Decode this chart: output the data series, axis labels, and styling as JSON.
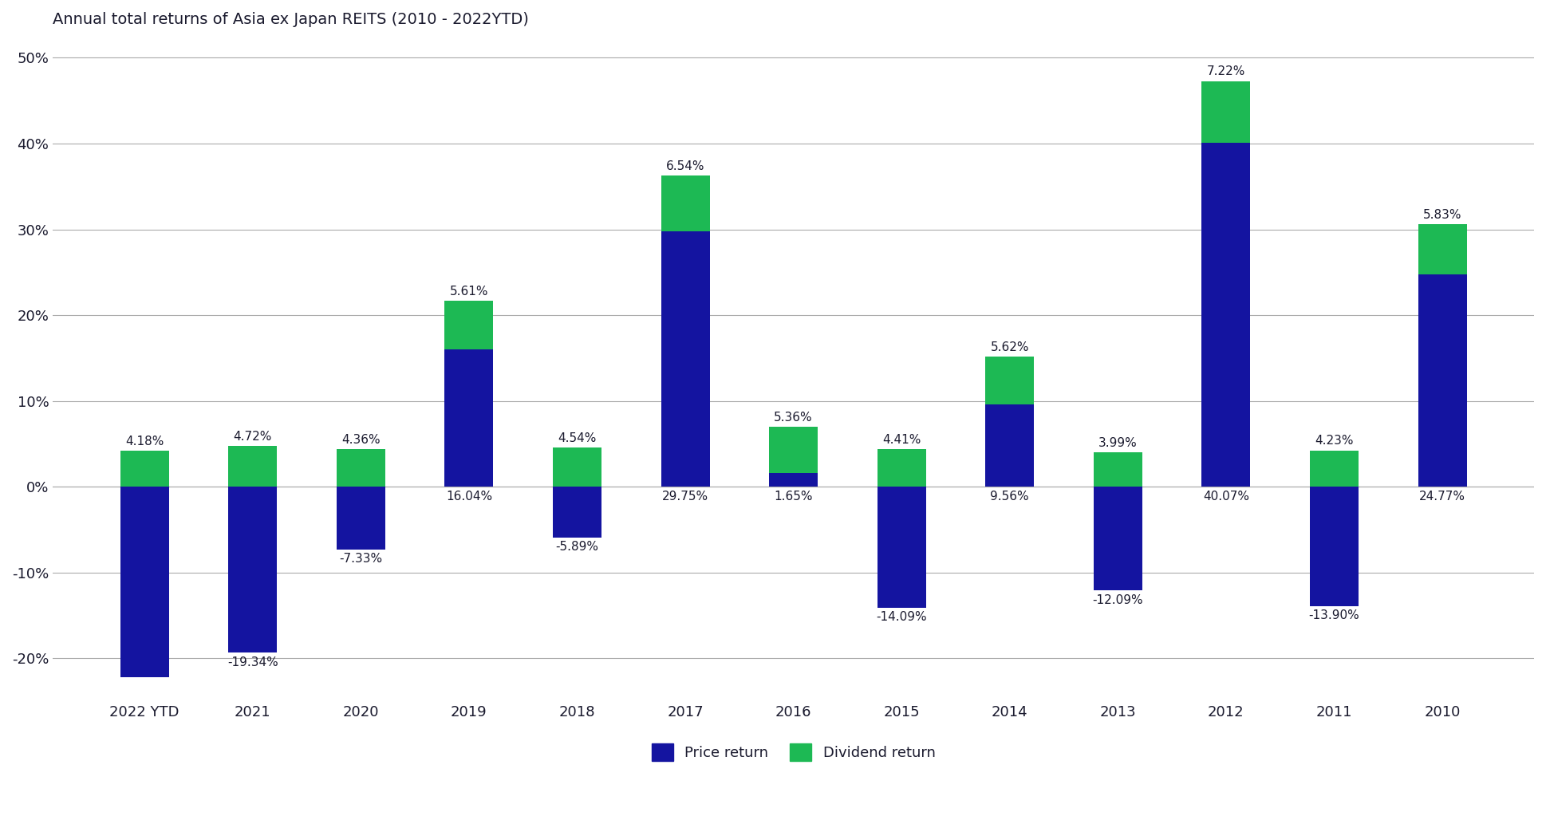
{
  "title": "Annual total returns of Asia ex Japan REITS (2010 - 2022YTD)",
  "categories": [
    "2022 YTD",
    "2021",
    "2020",
    "2019",
    "2018",
    "2017",
    "2016",
    "2015",
    "2014",
    "2013",
    "2012",
    "2011",
    "2010"
  ],
  "price_returns": [
    -22.18,
    -19.34,
    -7.33,
    16.04,
    -5.89,
    29.75,
    1.65,
    -14.09,
    9.56,
    -12.09,
    40.07,
    -13.9,
    24.77
  ],
  "dividend_returns": [
    4.18,
    4.72,
    4.36,
    5.61,
    4.54,
    6.54,
    5.36,
    4.41,
    5.62,
    3.99,
    7.22,
    4.23,
    5.83
  ],
  "price_labels": [
    "",
    "-19.34%",
    "-7.33%",
    "16.04%",
    "-5.89%",
    "29.75%",
    "1.65%",
    "-14.09%",
    "9.56%",
    "-12.09%",
    "40.07%",
    "-13.90%",
    "24.77%"
  ],
  "dividend_labels": [
    "4.18%",
    "4.72%",
    "4.36%",
    "5.61%",
    "4.54%",
    "6.54%",
    "5.36%",
    "4.41%",
    "5.62%",
    "3.99%",
    "7.22%",
    "4.23%",
    "5.83%"
  ],
  "price_color": "#1414A0",
  "dividend_color": "#1DB954",
  "ylim": [
    -25,
    52
  ],
  "yticks": [
    -20,
    -10,
    0,
    10,
    20,
    30,
    40,
    50
  ],
  "ytick_labels": [
    "-20%",
    "-10%",
    "0%",
    "10%",
    "20%",
    "30%",
    "40%",
    "50%"
  ],
  "background_color": "#ffffff",
  "grid_color": "#aaaaaa",
  "title_color": "#1a1a2e",
  "label_color": "#1a1a2e",
  "legend_labels": [
    "Price return",
    "Dividend return"
  ],
  "bar_width": 0.45
}
